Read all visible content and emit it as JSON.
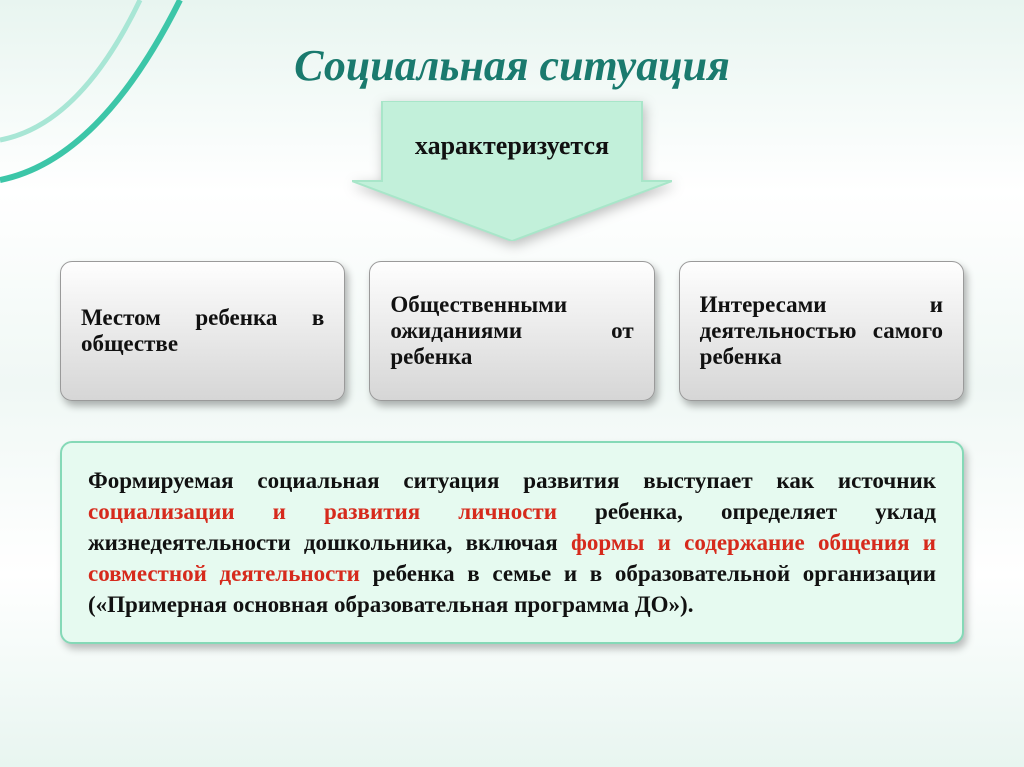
{
  "title": {
    "text": "Социальная ситуация",
    "color": "#1a7a6e",
    "fontsize": 44
  },
  "arrow": {
    "label": "характеризуется",
    "fill": "#c2f0da",
    "stroke": "#a8e6c9",
    "text_color": "#111111",
    "fontsize": 26
  },
  "boxes": [
    {
      "text": "Местом ребенка в обществе"
    },
    {
      "text": "Общественными ожиданиями от ребенка"
    },
    {
      "text": "Интересами и деятельностью самого ребенка"
    }
  ],
  "box_style": {
    "bg_gradient_top": "#fefefe",
    "bg_gradient_bottom": "#d6d6d6",
    "border_color": "#9a9a9a",
    "text_color": "#111111",
    "fontsize": 23,
    "border_radius": 12
  },
  "paragraph": {
    "segments": [
      {
        "text": "Формируемая социальная ситуация развития выступает как источник ",
        "color": "#111111"
      },
      {
        "text": "социализации и развития личности",
        "color": "#d62a1c"
      },
      {
        "text": " ребенка, определяет уклад жизнедеятельности дошкольника, включая ",
        "color": "#111111"
      },
      {
        "text": "формы и содержание общения и совместной деятельности",
        "color": "#d62a1c"
      },
      {
        "text": " ребенка в семье и в образовательной организации («Примерная основная образовательная программа ДО»).",
        "color": "#111111"
      }
    ],
    "bg": "#e6faf0",
    "border_color": "#85d9b7",
    "fontsize": 23
  },
  "decoration": {
    "curve_color_outer": "#3cc6a8",
    "curve_color_inner": "#a8e6d5"
  }
}
